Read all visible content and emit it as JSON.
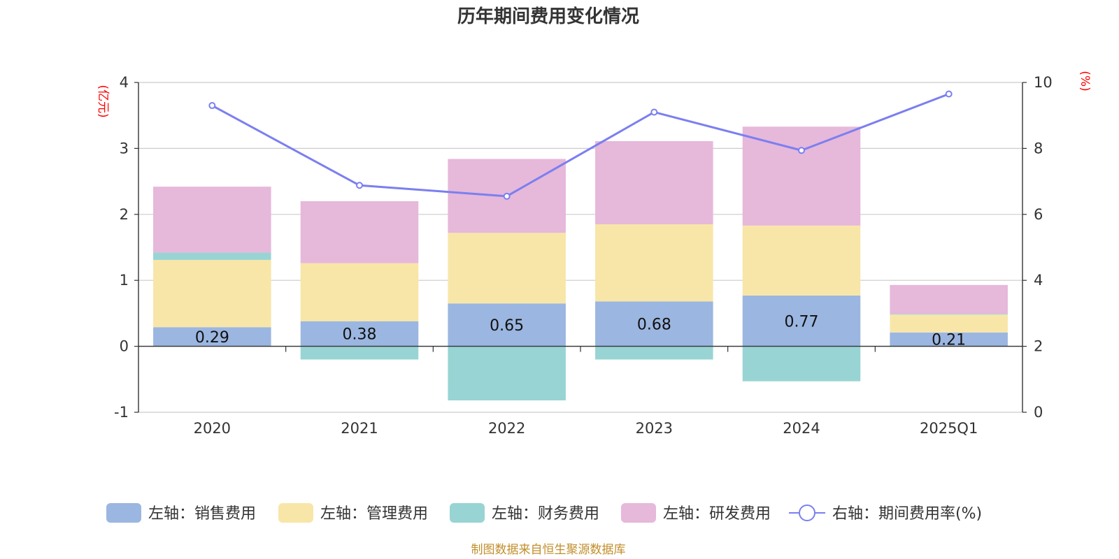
{
  "chart_data": {
    "type": "bar",
    "title": "历年期间费用变化情况",
    "categories": [
      "2020",
      "2021",
      "2022",
      "2023",
      "2024",
      "2025Q1"
    ],
    "left_axis": {
      "unit": "(亿元)",
      "ticks": [
        "4",
        "3",
        "2",
        "1",
        "0",
        "-1"
      ],
      "min": -1,
      "max": 4
    },
    "right_axis": {
      "unit": "(%)",
      "ticks": [
        "10",
        "8",
        "6",
        "4",
        "2",
        "0"
      ],
      "min": 0,
      "max": 10
    },
    "series": [
      {
        "name": "左轴：销售费用",
        "kind": "bar",
        "axis": "left",
        "color": "#9bb6e0",
        "values": [
          0.29,
          0.38,
          0.65,
          0.68,
          0.77,
          0.21
        ],
        "labels": [
          "0.29",
          "0.38",
          "0.65",
          "0.68",
          "0.77",
          "0.21"
        ]
      },
      {
        "name": "左轴：管理费用",
        "kind": "bar",
        "axis": "left",
        "color": "#f8e6a8",
        "values": [
          1.02,
          0.88,
          1.07,
          1.17,
          1.06,
          0.27
        ]
      },
      {
        "name": "左轴：财务费用",
        "kind": "bar",
        "axis": "left",
        "color": "#98d4d4",
        "values": [
          0.11,
          -0.2,
          -0.82,
          -0.2,
          -0.53,
          0.01
        ]
      },
      {
        "name": "左轴：研发费用",
        "kind": "bar",
        "axis": "left",
        "color": "#e6b8da",
        "values": [
          1.0,
          0.94,
          1.12,
          1.26,
          1.5,
          0.44
        ]
      },
      {
        "name": "右轴：期间费用率(%)",
        "kind": "line",
        "axis": "right",
        "color": "#7b7ff0",
        "values": [
          9.3,
          6.88,
          6.55,
          9.1,
          7.94,
          9.65
        ]
      }
    ],
    "grid": true,
    "legend": "bottom"
  },
  "source_note": "制图数据来自恒生聚源数据库"
}
